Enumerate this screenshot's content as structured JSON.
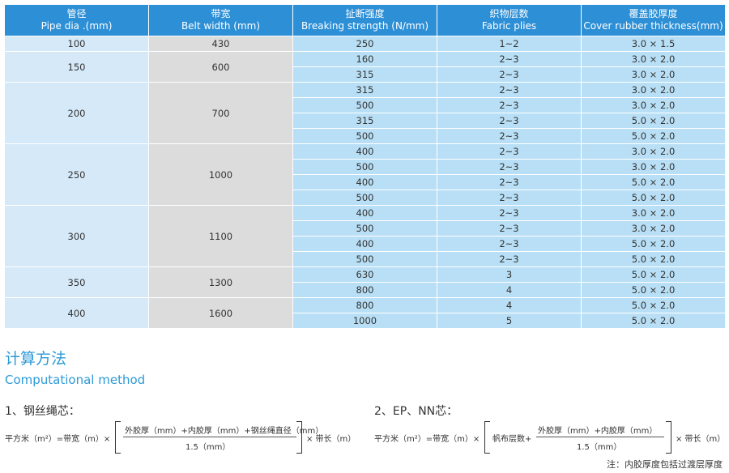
{
  "table": {
    "headers": [
      {
        "cn": "管径",
        "en": "Pipe dia .(mm)"
      },
      {
        "cn": "带宽",
        "en": "Belt width (mm)"
      },
      {
        "cn": "扯断强度",
        "en": "Breaking strength (N/mm)"
      },
      {
        "cn": "织物层数",
        "en": "Fabric plies"
      },
      {
        "cn": "覆盖胶厚度",
        "en": "Cover rubber thickness(mm)"
      }
    ],
    "groups": [
      {
        "pipe_dia": "100",
        "belt_width": "430",
        "rows": [
          {
            "strength": "250",
            "plies": "1~2",
            "cover": "3.0 × 1.5"
          }
        ]
      },
      {
        "pipe_dia": "150",
        "belt_width": "600",
        "rows": [
          {
            "strength": "160",
            "plies": "2~3",
            "cover": "3.0 × 2.0"
          },
          {
            "strength": "315",
            "plies": "2~3",
            "cover": "3.0 × 2.0"
          }
        ]
      },
      {
        "pipe_dia": "200",
        "belt_width": "700",
        "rows": [
          {
            "strength": "315",
            "plies": "2~3",
            "cover": "3.0 × 2.0"
          },
          {
            "strength": "500",
            "plies": "2~3",
            "cover": "3.0 × 2.0"
          },
          {
            "strength": "315",
            "plies": "2~3",
            "cover": "5.0 × 2.0"
          },
          {
            "strength": "500",
            "plies": "2~3",
            "cover": "5.0 × 2.0"
          }
        ]
      },
      {
        "pipe_dia": "250",
        "belt_width": "1000",
        "rows": [
          {
            "strength": "400",
            "plies": "2~3",
            "cover": "3.0 × 2.0"
          },
          {
            "strength": "500",
            "plies": "2~3",
            "cover": "3.0 × 2.0"
          },
          {
            "strength": "400",
            "plies": "2~3",
            "cover": "5.0 × 2.0"
          },
          {
            "strength": "500",
            "plies": "2~3",
            "cover": "5.0 × 2.0"
          }
        ]
      },
      {
        "pipe_dia": "300",
        "belt_width": "1100",
        "rows": [
          {
            "strength": "400",
            "plies": "2~3",
            "cover": "3.0 × 2.0"
          },
          {
            "strength": "500",
            "plies": "2~3",
            "cover": "3.0 × 2.0"
          },
          {
            "strength": "400",
            "plies": "2~3",
            "cover": "5.0 × 2.0"
          },
          {
            "strength": "500",
            "plies": "2~3",
            "cover": "5.0 × 2.0"
          }
        ]
      },
      {
        "pipe_dia": "350",
        "belt_width": "1300",
        "rows": [
          {
            "strength": "630",
            "plies": "3",
            "cover": "5.0 × 2.0"
          },
          {
            "strength": "800",
            "plies": "4",
            "cover": "5.0 × 2.0"
          }
        ]
      },
      {
        "pipe_dia": "400",
        "belt_width": "1600",
        "rows": [
          {
            "strength": "800",
            "plies": "4",
            "cover": "5.0 × 2.0"
          },
          {
            "strength": "1000",
            "plies": "5",
            "cover": "5.0 × 2.0"
          }
        ]
      }
    ]
  },
  "method": {
    "title_cn": "计算方法",
    "title_en": "Computational method",
    "steel": {
      "heading": "1、钢丝绳芯：",
      "lhs": "平方米（m²）=带宽（m）×",
      "numerator": "外胶厚（mm）+内胶厚（mm）+钢丝绳直径（mm）",
      "denominator": "1.5（mm）",
      "rhs": "× 带长（m）"
    },
    "fabric": {
      "heading": "2、EP、NN芯：",
      "lhs": "平方米（m²）=带宽（m）×",
      "prefix": "帆布层数+",
      "numerator": "外胶厚（mm）+内胶厚（mm）",
      "denominator": "1.5（mm）",
      "rhs": "× 带长（m）"
    },
    "note": "注：内胶厚度包括过渡层厚度"
  }
}
